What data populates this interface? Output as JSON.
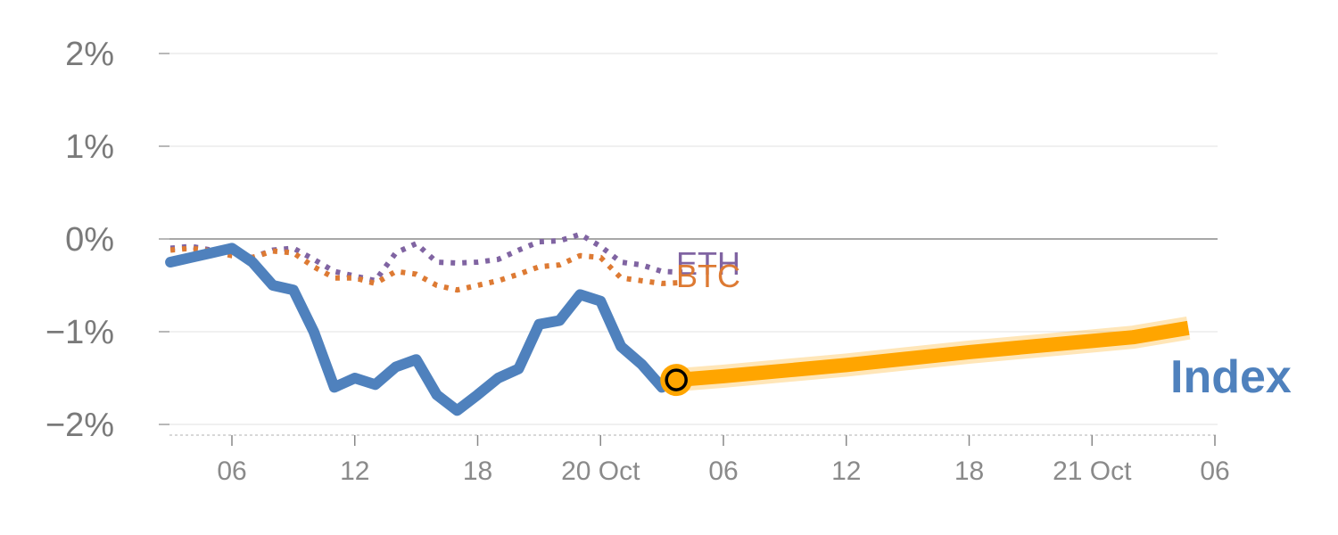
{
  "chart_data": {
    "type": "line",
    "title": "",
    "xlabel": "",
    "ylabel": "",
    "y_unit": "%",
    "ylim": [
      -2.1,
      2.1
    ],
    "y_ticks": [
      {
        "value": 2,
        "label": "2%"
      },
      {
        "value": 1,
        "label": "1%"
      },
      {
        "value": 0,
        "label": "0%"
      },
      {
        "value": -1,
        "label": "−1%"
      },
      {
        "value": -2,
        "label": "−2%"
      }
    ],
    "x_unit": "hours",
    "xlim": [
      2,
      54
    ],
    "x_ticks": [
      {
        "value": 6,
        "label": "06"
      },
      {
        "value": 12,
        "label": "12"
      },
      {
        "value": 18,
        "label": "18"
      },
      {
        "value": 24,
        "label": "20 Oct"
      },
      {
        "value": 30,
        "label": "06"
      },
      {
        "value": 36,
        "label": "12"
      },
      {
        "value": 42,
        "label": "18"
      },
      {
        "value": 48,
        "label": "21 Oct"
      },
      {
        "value": 54,
        "label": "06"
      }
    ],
    "grid": true,
    "zero_line": true,
    "series": [
      {
        "name": "ETH",
        "style": "dotted",
        "color": "#8064a2",
        "x": [
          3,
          4,
          5,
          6,
          7,
          8,
          9,
          10,
          11,
          12,
          13,
          14,
          15,
          16,
          17,
          18,
          19,
          20,
          21,
          22,
          23,
          24,
          25,
          26,
          27,
          28
        ],
        "y": [
          -0.1,
          -0.08,
          -0.12,
          -0.15,
          -0.2,
          -0.12,
          -0.1,
          -0.22,
          -0.35,
          -0.4,
          -0.45,
          -0.15,
          -0.05,
          -0.25,
          -0.26,
          -0.25,
          -0.22,
          -0.12,
          -0.03,
          -0.02,
          0.05,
          -0.08,
          -0.25,
          -0.28,
          -0.35,
          -0.36
        ]
      },
      {
        "name": "BTC",
        "style": "dotted",
        "color": "#dd7a33",
        "x": [
          3,
          4,
          5,
          6,
          7,
          8,
          9,
          10,
          11,
          12,
          13,
          14,
          15,
          16,
          17,
          18,
          19,
          20,
          21,
          22,
          23,
          24,
          25,
          26,
          27,
          28
        ],
        "y": [
          -0.12,
          -0.1,
          -0.13,
          -0.18,
          -0.2,
          -0.13,
          -0.15,
          -0.3,
          -0.42,
          -0.42,
          -0.48,
          -0.35,
          -0.38,
          -0.5,
          -0.55,
          -0.5,
          -0.45,
          -0.38,
          -0.3,
          -0.28,
          -0.18,
          -0.2,
          -0.42,
          -0.45,
          -0.48,
          -0.47
        ]
      },
      {
        "name": "Index",
        "style": "solid",
        "color": "#4f81bd",
        "x": [
          3,
          4,
          5,
          6,
          7,
          8,
          9,
          10,
          11,
          12,
          13,
          14,
          15,
          16,
          17,
          18,
          19,
          20,
          21,
          22,
          23,
          24,
          25,
          26,
          27
        ],
        "y": [
          -0.25,
          -0.2,
          -0.15,
          -0.1,
          -0.25,
          -0.5,
          -0.55,
          -1.0,
          -1.6,
          -1.5,
          -1.57,
          -1.38,
          -1.3,
          -1.68,
          -1.85,
          -1.68,
          -1.5,
          -1.4,
          -0.92,
          -0.88,
          -0.6,
          -0.67,
          -1.16,
          -1.35,
          -1.6
        ]
      },
      {
        "name": "",
        "style": "forecast-band",
        "color": "#ffa500",
        "x": [
          27.7,
          30,
          36,
          42,
          48,
          50,
          52.7
        ],
        "y": [
          -1.52,
          -1.48,
          -1.36,
          -1.22,
          -1.1,
          -1.06,
          -0.96
        ]
      }
    ],
    "marker": {
      "x": 27.7,
      "y": -1.52,
      "color": "#ffa500"
    }
  },
  "labels": {
    "eth": "ETH",
    "btc": "BTC",
    "index": "Index"
  },
  "colors": {
    "eth": "#8064a2",
    "btc": "#dd7a33",
    "index": "#4f81bd",
    "forecast": "#ffa500",
    "grid": "#e6e6e6",
    "zero": "#8a8a8a",
    "axis": "#999999",
    "text": "#7a7a7a"
  }
}
